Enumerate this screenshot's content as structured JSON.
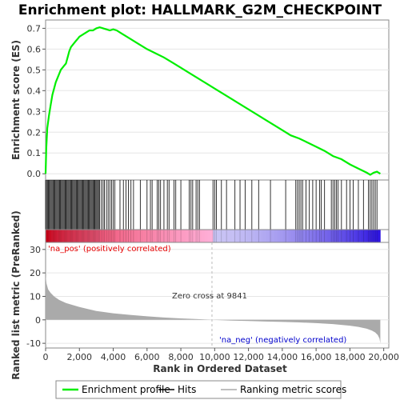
{
  "chart_data": {
    "type": "line",
    "title": "Enrichment plot: HALLMARK_G2M_CHECKPOINT",
    "top_panel": {
      "ylabel": "Enrichment score (ES)",
      "ylim": [
        -0.03,
        0.74
      ],
      "yticks": [
        "0.0",
        "0.1",
        "0.2",
        "0.3",
        "0.4",
        "0.5",
        "0.6",
        "0.7"
      ],
      "yticks_values": [
        0,
        0.1,
        0.2,
        0.3,
        0.4,
        0.5,
        0.6,
        0.7
      ],
      "series": [
        {
          "name": "Enrichment profile",
          "color": "#00ee00",
          "x": [
            0,
            40,
            100,
            200,
            300,
            400,
            500,
            600,
            700,
            800,
            900,
            1000,
            1100,
            1200,
            1300,
            1400,
            1500,
            1600,
            1700,
            1800,
            1900,
            2000,
            2200,
            2400,
            2600,
            2800,
            3000,
            3200,
            3400,
            3600,
            3800,
            4000,
            4200,
            4500,
            5000,
            5500,
            6000,
            6500,
            7000,
            7500,
            8000,
            8500,
            9000,
            9500,
            10000,
            10500,
            11000,
            11500,
            12000,
            12500,
            13000,
            13500,
            14000,
            14500,
            15000,
            15500,
            16000,
            16500,
            17000,
            17500,
            18000,
            18500,
            19000,
            19200,
            19400,
            19600,
            19800
          ],
          "y": [
            0.0,
            0.12,
            0.22,
            0.28,
            0.33,
            0.38,
            0.41,
            0.44,
            0.46,
            0.48,
            0.5,
            0.51,
            0.52,
            0.53,
            0.56,
            0.59,
            0.61,
            0.62,
            0.63,
            0.64,
            0.65,
            0.66,
            0.67,
            0.68,
            0.69,
            0.69,
            0.7,
            0.705,
            0.7,
            0.695,
            0.69,
            0.695,
            0.69,
            0.675,
            0.65,
            0.625,
            0.6,
            0.58,
            0.56,
            0.535,
            0.51,
            0.485,
            0.46,
            0.435,
            0.41,
            0.385,
            0.36,
            0.335,
            0.31,
            0.285,
            0.26,
            0.235,
            0.21,
            0.185,
            0.17,
            0.15,
            0.13,
            0.11,
            0.085,
            0.07,
            0.045,
            0.025,
            0.005,
            -0.005,
            0.005,
            0.01,
            0.0
          ]
        }
      ]
    },
    "hits": {
      "name": "Hits",
      "dense_start": 0,
      "dense_end": 3200,
      "dense_step": 55,
      "sparse_positions": [
        3300,
        3400,
        3480,
        3600,
        3700,
        3800,
        3900,
        4000,
        4100,
        4400,
        4600,
        4750,
        4900,
        5050,
        5200,
        5600,
        6000,
        6200,
        6300,
        6600,
        6700,
        6800,
        7000,
        7200,
        7300,
        7600,
        7700,
        8000,
        8500,
        8600,
        8700,
        8900,
        9000,
        9100,
        9900,
        10000,
        10100,
        10400,
        10700,
        11200,
        11500,
        11800,
        12200,
        12600,
        13300,
        14200,
        14800,
        14900,
        15000,
        15100,
        15200,
        15400,
        15600,
        15800,
        16000,
        16200,
        16300,
        16500,
        16900,
        17000,
        17100,
        17200,
        17300,
        17500,
        17800,
        18000,
        18200,
        18500,
        18800,
        19100,
        19200,
        19300,
        19400,
        19500,
        19600
      ]
    },
    "bottom_panel": {
      "ylabel": "Ranked list metric (PreRanked)",
      "ylim": [
        -12,
        33
      ],
      "yticks": [
        "-10",
        "0",
        "10",
        "20",
        "30"
      ],
      "yticks_values": [
        -10,
        0,
        10,
        20,
        30
      ],
      "series": [
        {
          "name": "Ranking metric scores",
          "color": "#aaaaaa",
          "x": [
            0,
            50,
            150,
            300,
            500,
            800,
            1200,
            1600,
            2000,
            2500,
            3000,
            4000,
            5000,
            6000,
            7000,
            8000,
            9000,
            9841,
            11000,
            12000,
            13000,
            14000,
            15000,
            16000,
            17000,
            18000,
            18500,
            19000,
            19300,
            19500,
            19650,
            19750,
            19800
          ],
          "y": [
            19,
            15.5,
            13,
            11.5,
            10,
            8.5,
            7.2,
            6.3,
            5.5,
            4.6,
            3.8,
            2.8,
            2.1,
            1.5,
            1.0,
            0.6,
            0.3,
            0.0,
            -0.3,
            -0.5,
            -0.7,
            -0.9,
            -1.1,
            -1.4,
            -1.8,
            -2.5,
            -3.0,
            -3.8,
            -4.6,
            -5.4,
            -6.5,
            -8.0,
            -10.0
          ]
        }
      ],
      "annotations": {
        "pos_label": "'na_pos' (positively correlated)",
        "neg_label": "'na_neg' (negatively correlated)",
        "zero_cross_label": "Zero cross at 9841",
        "zero_cross_value": 9841
      }
    },
    "x_axis": {
      "xlabel": "Rank in Ordered Dataset",
      "xlim": [
        0,
        20300
      ],
      "xticks": [
        "0",
        "2,000",
        "4,000",
        "6,000",
        "8,000",
        "10,000",
        "12,000",
        "14,000",
        "16,000",
        "18,000",
        "20,000"
      ],
      "xticks_values": [
        0,
        2000,
        4000,
        6000,
        8000,
        10000,
        12000,
        14000,
        16000,
        18000,
        20000
      ]
    },
    "colors": {
      "pos_annotation": "#e60000",
      "neg_annotation": "#0000cc",
      "heat_red": "#e0001a",
      "heat_pink": "#ffb0d8",
      "heat_lavender": "#c9c4f4",
      "heat_blue": "#2a10e0"
    }
  },
  "legend": {
    "items": [
      {
        "label": "Enrichment profile",
        "color": "#00ee00"
      },
      {
        "label": "Hits",
        "color": "#000000"
      },
      {
        "label": "Ranking metric scores",
        "color": "#aaaaaa"
      }
    ]
  }
}
